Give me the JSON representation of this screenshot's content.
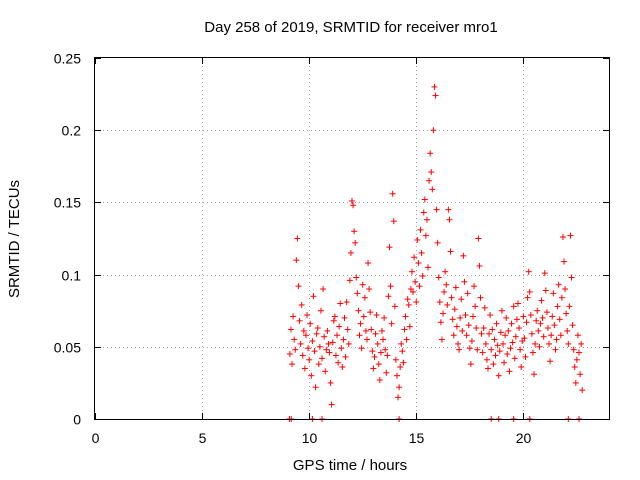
{
  "chart_data": {
    "type": "scatter",
    "title": "Day 258 of 2019, SRMTID for receiver mro1",
    "xlabel": "GPS time / hours",
    "ylabel": "SRMTID / TECUs",
    "xlim": [
      0,
      24
    ],
    "ylim": [
      0,
      0.25
    ],
    "x_ticks": [
      0,
      5,
      10,
      15,
      20
    ],
    "x_tick_labels": [
      "0",
      "5",
      "10",
      "15",
      "20"
    ],
    "y_ticks": [
      0,
      0.05,
      0.1,
      0.15,
      0.2,
      0.25
    ],
    "y_tick_labels": [
      "0",
      "0.05",
      "0.1",
      "0.15",
      "0.2",
      "0.25"
    ],
    "grid": true,
    "marker": "plus",
    "color": "#ff0000",
    "series": [
      {
        "name": "SRMTID",
        "points": [
          [
            9.1,
            0.045
          ],
          [
            9.15,
            0.062
          ],
          [
            9.2,
            0.038
          ],
          [
            9.25,
            0.071
          ],
          [
            9.3,
            0.055
          ],
          [
            9.35,
            0.048
          ],
          [
            9.4,
            0.11
          ],
          [
            9.45,
            0.125
          ],
          [
            9.5,
            0.092
          ],
          [
            9.55,
            0.068
          ],
          [
            9.6,
            0.052
          ],
          [
            9.65,
            0.079
          ],
          [
            9.7,
            0.044
          ],
          [
            9.75,
            0.061
          ],
          [
            9.8,
            0.035
          ],
          [
            9.85,
            0.058
          ],
          [
            9.9,
            0.072
          ],
          [
            9.95,
            0.049
          ],
          [
            10.0,
            0.041
          ],
          [
            10.05,
            0.066
          ],
          [
            10.1,
            0.03
          ],
          [
            10.15,
            0.054
          ],
          [
            10.2,
            0.085
          ],
          [
            10.25,
            0.047
          ],
          [
            10.3,
            0.022
          ],
          [
            10.35,
            0.059
          ],
          [
            10.4,
            0.063
          ],
          [
            10.45,
            0.038
          ],
          [
            10.5,
            0.05
          ],
          [
            10.55,
            0.075
          ],
          [
            10.6,
            0.042
          ],
          [
            10.65,
            0.09
          ],
          [
            10.7,
            0.057
          ],
          [
            10.75,
            0.033
          ],
          [
            10.8,
            0.048
          ],
          [
            10.85,
            0.061
          ],
          [
            10.9,
            0.052
          ],
          [
            10.95,
            0.046
          ],
          [
            11.0,
            0.025
          ],
          [
            11.05,
            0.01
          ],
          [
            11.1,
            0.053
          ],
          [
            11.15,
            0.068
          ],
          [
            11.2,
            0.071
          ],
          [
            11.25,
            0.044
          ],
          [
            11.3,
            0.058
          ],
          [
            11.35,
            0.039
          ],
          [
            11.4,
            0.064
          ],
          [
            11.45,
            0.08
          ],
          [
            11.5,
            0.049
          ],
          [
            11.55,
            0.036
          ],
          [
            11.6,
            0.055
          ],
          [
            11.65,
            0.07
          ],
          [
            11.7,
            0.043
          ],
          [
            11.75,
            0.081
          ],
          [
            11.8,
            0.062
          ],
          [
            11.85,
            0.052
          ],
          [
            11.9,
            0.096
          ],
          [
            11.95,
            0.115
          ],
          [
            12.0,
            0.151
          ],
          [
            12.05,
            0.148
          ],
          [
            12.1,
            0.13
          ],
          [
            12.15,
            0.122
          ],
          [
            12.2,
            0.098
          ],
          [
            12.25,
            0.087
          ],
          [
            12.3,
            0.075
          ],
          [
            12.35,
            0.058
          ],
          [
            12.4,
            0.066
          ],
          [
            12.45,
            0.049
          ],
          [
            12.5,
            0.093
          ],
          [
            12.55,
            0.071
          ],
          [
            12.6,
            0.084
          ],
          [
            12.65,
            0.061
          ],
          [
            12.7,
            0.055
          ],
          [
            12.75,
            0.108
          ],
          [
            12.8,
            0.09
          ],
          [
            12.85,
            0.074
          ],
          [
            12.9,
            0.062
          ],
          [
            12.95,
            0.047
          ],
          [
            13.0,
            0.035
          ],
          [
            13.05,
            0.043
          ],
          [
            13.1,
            0.059
          ],
          [
            13.15,
            0.072
          ],
          [
            13.2,
            0.052
          ],
          [
            13.25,
            0.038
          ],
          [
            13.3,
            0.027
          ],
          [
            13.35,
            0.046
          ],
          [
            13.4,
            0.061
          ],
          [
            13.45,
            0.055
          ],
          [
            13.5,
            0.07
          ],
          [
            13.55,
            0.048
          ],
          [
            13.6,
            0.032
          ],
          [
            13.65,
            0.044
          ],
          [
            13.7,
            0.085
          ],
          [
            13.75,
            0.119
          ],
          [
            13.8,
            0.092
          ],
          [
            13.85,
            0.066
          ],
          [
            13.9,
            0.156
          ],
          [
            13.95,
            0.137
          ],
          [
            14.0,
            0.078
          ],
          [
            14.05,
            0.041
          ],
          [
            14.1,
            0.03
          ],
          [
            14.15,
            0.015
          ],
          [
            14.2,
            0.022
          ],
          [
            14.25,
            0.036
          ],
          [
            14.3,
            0.052
          ],
          [
            14.35,
            0.047
          ],
          [
            14.4,
            0.039
          ],
          [
            14.45,
            0.062
          ],
          [
            14.5,
            0.071
          ],
          [
            14.55,
            0.055
          ],
          [
            14.6,
            0.083
          ],
          [
            14.65,
            0.079
          ],
          [
            14.7,
            0.064
          ],
          [
            14.75,
            0.09
          ],
          [
            14.8,
            0.102
          ],
          [
            14.85,
            0.088
          ],
          [
            14.9,
            0.112
          ],
          [
            14.95,
            0.095
          ],
          [
            15.0,
            0.081
          ],
          [
            15.05,
            0.124
          ],
          [
            15.1,
            0.108
          ],
          [
            15.15,
            0.092
          ],
          [
            15.2,
            0.131
          ],
          [
            15.25,
            0.115
          ],
          [
            15.3,
            0.099
          ],
          [
            15.35,
            0.143
          ],
          [
            15.4,
            0.152
          ],
          [
            15.45,
            0.127
          ],
          [
            15.5,
            0.138
          ],
          [
            15.55,
            0.105
          ],
          [
            15.6,
            0.165
          ],
          [
            15.65,
            0.184
          ],
          [
            15.7,
            0.171
          ],
          [
            15.75,
            0.159
          ],
          [
            15.8,
            0.2
          ],
          [
            15.85,
            0.23
          ],
          [
            15.9,
            0.224
          ],
          [
            15.95,
            0.145
          ],
          [
            16.0,
            0.122
          ],
          [
            16.05,
            0.098
          ],
          [
            16.1,
            0.081
          ],
          [
            16.15,
            0.067
          ],
          [
            16.2,
            0.055
          ],
          [
            16.25,
            0.073
          ],
          [
            16.3,
            0.088
          ],
          [
            16.35,
            0.102
          ],
          [
            16.4,
            0.093
          ],
          [
            16.45,
            0.079
          ],
          [
            16.5,
            0.145
          ],
          [
            16.55,
            0.138
          ],
          [
            16.6,
            0.116
          ],
          [
            16.65,
            0.084
          ],
          [
            16.7,
            0.069
          ],
          [
            16.75,
            0.058
          ],
          [
            16.8,
            0.076
          ],
          [
            16.85,
            0.091
          ],
          [
            16.9,
            0.064
          ],
          [
            16.95,
            0.052
          ],
          [
            17.0,
            0.048
          ],
          [
            17.05,
            0.07
          ],
          [
            17.1,
            0.083
          ],
          [
            17.15,
            0.061
          ],
          [
            17.2,
            0.113
          ],
          [
            17.25,
            0.095
          ],
          [
            17.3,
            0.072
          ],
          [
            17.35,
            0.058
          ],
          [
            17.4,
            0.087
          ],
          [
            17.45,
            0.065
          ],
          [
            17.5,
            0.049
          ],
          [
            17.55,
            0.038
          ],
          [
            17.6,
            0.054
          ],
          [
            17.65,
            0.071
          ],
          [
            17.7,
            0.092
          ],
          [
            17.75,
            0.078
          ],
          [
            17.8,
            0.063
          ],
          [
            17.85,
            0.048
          ],
          [
            17.9,
            0.125
          ],
          [
            17.95,
            0.106
          ],
          [
            18.0,
            0.084
          ],
          [
            18.05,
            0.059
          ],
          [
            18.1,
            0.046
          ],
          [
            18.15,
            0.063
          ],
          [
            18.2,
            0.077
          ],
          [
            18.25,
            0.052
          ],
          [
            18.3,
            0.041
          ],
          [
            18.35,
            0.035
          ],
          [
            18.4,
            0.059
          ],
          [
            18.45,
            0.072
          ],
          [
            18.5,
            0.048
          ],
          [
            18.55,
            0.062
          ],
          [
            18.6,
            0.038
          ],
          [
            18.65,
            0.055
          ],
          [
            18.7,
            0.044
          ],
          [
            18.75,
            0.066
          ],
          [
            18.8,
            0.051
          ],
          [
            18.85,
            0.03
          ],
          [
            18.9,
            0.047
          ],
          [
            18.95,
            0.06
          ],
          [
            19.0,
            0.075
          ],
          [
            19.05,
            0.052
          ],
          [
            19.1,
            0.039
          ],
          [
            19.15,
            0.058
          ],
          [
            19.2,
            0.07
          ],
          [
            19.25,
            0.045
          ],
          [
            19.3,
            0.061
          ],
          [
            19.35,
            0.033
          ],
          [
            19.4,
            0.049
          ],
          [
            19.45,
            0.066
          ],
          [
            19.5,
            0.053
          ],
          [
            19.55,
            0.078
          ],
          [
            19.6,
            0.042
          ],
          [
            19.65,
            0.057
          ],
          [
            19.7,
            0.069
          ],
          [
            19.75,
            0.08
          ],
          [
            19.8,
            0.063
          ],
          [
            19.85,
            0.048
          ],
          [
            19.9,
            0.036
          ],
          [
            19.95,
            0.054
          ],
          [
            20.0,
            0.071
          ],
          [
            20.05,
            0.056
          ],
          [
            20.1,
            0.043
          ],
          [
            20.15,
            0.067
          ],
          [
            20.2,
            0.084
          ],
          [
            20.25,
            0.102
          ],
          [
            20.3,
            0.088
          ],
          [
            20.35,
            0.072
          ],
          [
            20.4,
            0.059
          ],
          [
            20.45,
            0.046
          ],
          [
            20.5,
            0.031
          ],
          [
            20.55,
            0.052
          ],
          [
            20.6,
            0.068
          ],
          [
            20.65,
            0.075
          ],
          [
            20.7,
            0.061
          ],
          [
            20.75,
            0.05
          ],
          [
            20.8,
            0.066
          ],
          [
            20.85,
            0.082
          ],
          [
            20.9,
            0.07
          ],
          [
            20.95,
            0.057
          ],
          [
            21.0,
            0.101
          ],
          [
            21.05,
            0.089
          ],
          [
            21.1,
            0.074
          ],
          [
            21.15,
            0.063
          ],
          [
            21.2,
            0.052
          ],
          [
            21.25,
            0.04
          ],
          [
            21.3,
            0.058
          ],
          [
            21.35,
            0.071
          ],
          [
            21.4,
            0.087
          ],
          [
            21.45,
            0.065
          ],
          [
            21.5,
            0.048
          ],
          [
            21.55,
            0.055
          ],
          [
            21.6,
            0.078
          ],
          [
            21.65,
            0.093
          ],
          [
            21.7,
            0.069
          ],
          [
            21.75,
            0.058
          ],
          [
            21.8,
            0.084
          ],
          [
            21.85,
            0.126
          ],
          [
            21.9,
            0.109
          ],
          [
            21.95,
            0.09
          ],
          [
            22.0,
            0.073
          ],
          [
            22.05,
            0.061
          ],
          [
            22.1,
            0.052
          ],
          [
            22.15,
            0.078
          ],
          [
            22.2,
            0.127
          ],
          [
            22.25,
            0.098
          ],
          [
            22.3,
            0.065
          ],
          [
            22.35,
            0.048
          ],
          [
            22.4,
            0.036
          ],
          [
            22.45,
            0.025
          ],
          [
            22.5,
            0.041
          ],
          [
            22.55,
            0.058
          ],
          [
            22.6,
            0.046
          ],
          [
            22.65,
            0.031
          ],
          [
            22.7,
            0.052
          ],
          [
            22.75,
            0.02
          ],
          [
            9.08,
            0.0
          ],
          [
            9.16,
            0.0
          ],
          [
            10.15,
            0.0
          ],
          [
            10.6,
            0.0
          ],
          [
            14.2,
            0.0
          ],
          [
            18.5,
            0.0
          ],
          [
            18.85,
            0.0
          ],
          [
            19.55,
            0.0
          ],
          [
            20.3,
            0.0
          ],
          [
            22.1,
            0.0
          ],
          [
            22.6,
            0.0
          ]
        ]
      }
    ]
  }
}
